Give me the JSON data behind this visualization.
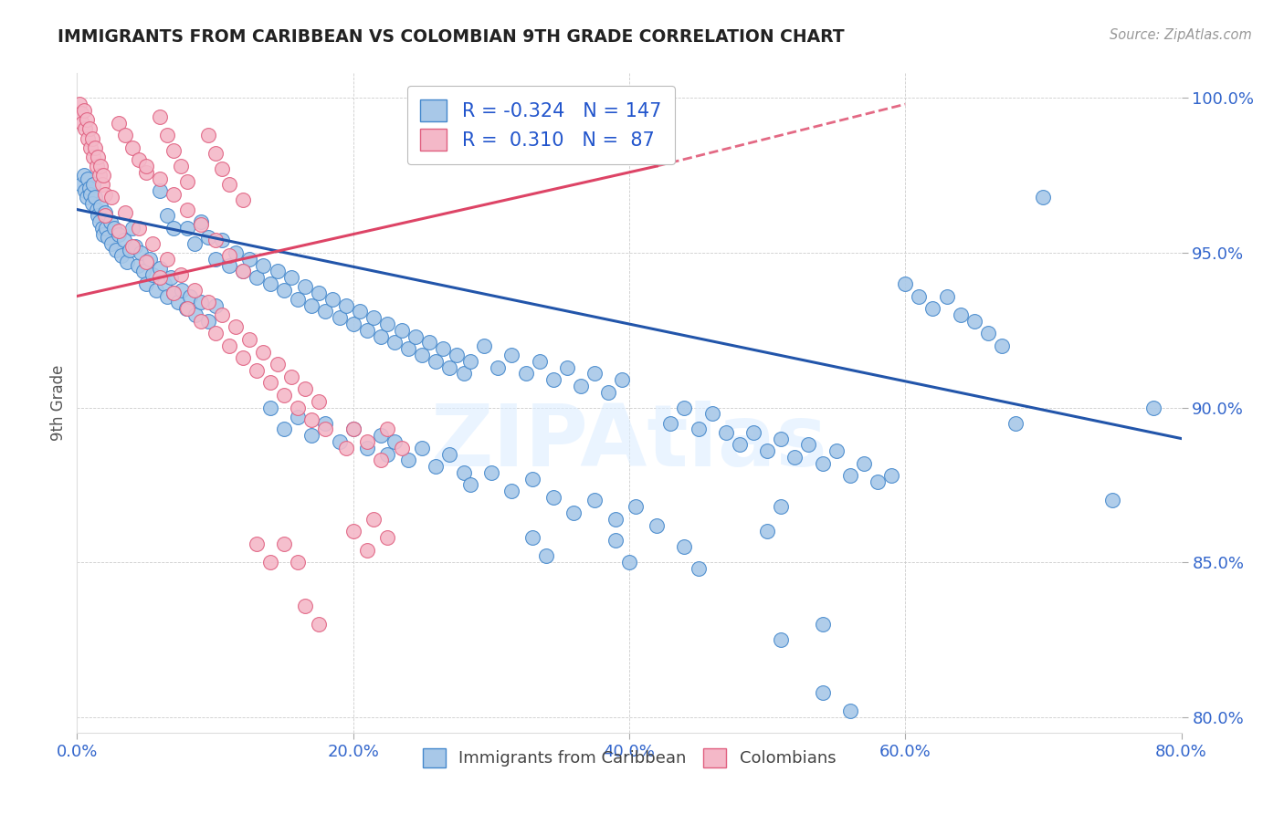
{
  "title": "IMMIGRANTS FROM CARIBBEAN VS COLOMBIAN 9TH GRADE CORRELATION CHART",
  "source": "Source: ZipAtlas.com",
  "xlabel_ticks": [
    "0.0%",
    "20.0%",
    "40.0%",
    "60.0%",
    "80.0%"
  ],
  "ylabel_ticks": [
    "80.0%",
    "85.0%",
    "90.0%",
    "95.0%",
    "100.0%"
  ],
  "xlim": [
    0.0,
    0.8
  ],
  "ylim": [
    0.795,
    1.008
  ],
  "ylabel": "9th Grade",
  "legend_label1": "Immigrants from Caribbean",
  "legend_label2": "Colombians",
  "blue_color": "#a8c8e8",
  "pink_color": "#f4b8c8",
  "blue_edge_color": "#4488cc",
  "pink_edge_color": "#e06080",
  "blue_line_color": "#2255aa",
  "pink_line_color": "#dd4466",
  "R_blue": "-0.324",
  "N_blue": "147",
  "R_pink": "0.310",
  "N_pink": "87",
  "watermark": "ZIPAtlas",
  "blue_trend": [
    0.0,
    0.8,
    0.964,
    0.89
  ],
  "pink_trend_solid": [
    0.0,
    0.42,
    0.936,
    0.978
  ],
  "pink_trend_dash": [
    0.42,
    0.6,
    0.978,
    0.998
  ],
  "blue_points": [
    [
      0.003,
      0.972
    ],
    [
      0.005,
      0.975
    ],
    [
      0.006,
      0.97
    ],
    [
      0.007,
      0.968
    ],
    [
      0.008,
      0.974
    ],
    [
      0.009,
      0.971
    ],
    [
      0.01,
      0.969
    ],
    [
      0.011,
      0.966
    ],
    [
      0.012,
      0.972
    ],
    [
      0.013,
      0.968
    ],
    [
      0.014,
      0.964
    ],
    [
      0.015,
      0.962
    ],
    [
      0.016,
      0.96
    ],
    [
      0.017,
      0.965
    ],
    [
      0.018,
      0.958
    ],
    [
      0.019,
      0.956
    ],
    [
      0.02,
      0.963
    ],
    [
      0.021,
      0.958
    ],
    [
      0.022,
      0.955
    ],
    [
      0.024,
      0.96
    ],
    [
      0.025,
      0.953
    ],
    [
      0.027,
      0.958
    ],
    [
      0.028,
      0.951
    ],
    [
      0.03,
      0.956
    ],
    [
      0.032,
      0.949
    ],
    [
      0.034,
      0.954
    ],
    [
      0.036,
      0.947
    ],
    [
      0.038,
      0.951
    ],
    [
      0.04,
      0.958
    ],
    [
      0.042,
      0.952
    ],
    [
      0.044,
      0.946
    ],
    [
      0.046,
      0.95
    ],
    [
      0.048,
      0.944
    ],
    [
      0.05,
      0.94
    ],
    [
      0.053,
      0.948
    ],
    [
      0.055,
      0.943
    ],
    [
      0.057,
      0.938
    ],
    [
      0.06,
      0.945
    ],
    [
      0.063,
      0.94
    ],
    [
      0.065,
      0.936
    ],
    [
      0.068,
      0.942
    ],
    [
      0.07,
      0.937
    ],
    [
      0.073,
      0.934
    ],
    [
      0.076,
      0.938
    ],
    [
      0.079,
      0.932
    ],
    [
      0.082,
      0.936
    ],
    [
      0.086,
      0.93
    ],
    [
      0.09,
      0.934
    ],
    [
      0.095,
      0.928
    ],
    [
      0.1,
      0.933
    ],
    [
      0.06,
      0.97
    ],
    [
      0.065,
      0.962
    ],
    [
      0.07,
      0.958
    ],
    [
      0.08,
      0.958
    ],
    [
      0.085,
      0.953
    ],
    [
      0.09,
      0.96
    ],
    [
      0.095,
      0.955
    ],
    [
      0.1,
      0.948
    ],
    [
      0.105,
      0.954
    ],
    [
      0.11,
      0.946
    ],
    [
      0.115,
      0.95
    ],
    [
      0.12,
      0.944
    ],
    [
      0.125,
      0.948
    ],
    [
      0.13,
      0.942
    ],
    [
      0.135,
      0.946
    ],
    [
      0.14,
      0.94
    ],
    [
      0.145,
      0.944
    ],
    [
      0.15,
      0.938
    ],
    [
      0.155,
      0.942
    ],
    [
      0.16,
      0.935
    ],
    [
      0.165,
      0.939
    ],
    [
      0.17,
      0.933
    ],
    [
      0.175,
      0.937
    ],
    [
      0.18,
      0.931
    ],
    [
      0.185,
      0.935
    ],
    [
      0.19,
      0.929
    ],
    [
      0.195,
      0.933
    ],
    [
      0.2,
      0.927
    ],
    [
      0.205,
      0.931
    ],
    [
      0.21,
      0.925
    ],
    [
      0.215,
      0.929
    ],
    [
      0.22,
      0.923
    ],
    [
      0.225,
      0.927
    ],
    [
      0.23,
      0.921
    ],
    [
      0.235,
      0.925
    ],
    [
      0.24,
      0.919
    ],
    [
      0.245,
      0.923
    ],
    [
      0.25,
      0.917
    ],
    [
      0.255,
      0.921
    ],
    [
      0.26,
      0.915
    ],
    [
      0.265,
      0.919
    ],
    [
      0.27,
      0.913
    ],
    [
      0.275,
      0.917
    ],
    [
      0.28,
      0.911
    ],
    [
      0.285,
      0.915
    ],
    [
      0.295,
      0.92
    ],
    [
      0.305,
      0.913
    ],
    [
      0.315,
      0.917
    ],
    [
      0.325,
      0.911
    ],
    [
      0.335,
      0.915
    ],
    [
      0.345,
      0.909
    ],
    [
      0.355,
      0.913
    ],
    [
      0.365,
      0.907
    ],
    [
      0.375,
      0.911
    ],
    [
      0.385,
      0.905
    ],
    [
      0.395,
      0.909
    ],
    [
      0.14,
      0.9
    ],
    [
      0.15,
      0.893
    ],
    [
      0.16,
      0.897
    ],
    [
      0.17,
      0.891
    ],
    [
      0.18,
      0.895
    ],
    [
      0.19,
      0.889
    ],
    [
      0.2,
      0.893
    ],
    [
      0.21,
      0.887
    ],
    [
      0.22,
      0.891
    ],
    [
      0.225,
      0.885
    ],
    [
      0.23,
      0.889
    ],
    [
      0.24,
      0.883
    ],
    [
      0.25,
      0.887
    ],
    [
      0.26,
      0.881
    ],
    [
      0.27,
      0.885
    ],
    [
      0.28,
      0.879
    ],
    [
      0.285,
      0.875
    ],
    [
      0.3,
      0.879
    ],
    [
      0.315,
      0.873
    ],
    [
      0.33,
      0.877
    ],
    [
      0.345,
      0.871
    ],
    [
      0.36,
      0.866
    ],
    [
      0.375,
      0.87
    ],
    [
      0.39,
      0.864
    ],
    [
      0.405,
      0.868
    ],
    [
      0.42,
      0.862
    ],
    [
      0.43,
      0.895
    ],
    [
      0.44,
      0.9
    ],
    [
      0.45,
      0.893
    ],
    [
      0.46,
      0.898
    ],
    [
      0.47,
      0.892
    ],
    [
      0.48,
      0.888
    ],
    [
      0.49,
      0.892
    ],
    [
      0.5,
      0.886
    ],
    [
      0.51,
      0.89
    ],
    [
      0.52,
      0.884
    ],
    [
      0.53,
      0.888
    ],
    [
      0.54,
      0.882
    ],
    [
      0.55,
      0.886
    ],
    [
      0.56,
      0.878
    ],
    [
      0.57,
      0.882
    ],
    [
      0.58,
      0.876
    ],
    [
      0.59,
      0.878
    ],
    [
      0.6,
      0.94
    ],
    [
      0.61,
      0.936
    ],
    [
      0.62,
      0.932
    ],
    [
      0.63,
      0.936
    ],
    [
      0.64,
      0.93
    ],
    [
      0.65,
      0.928
    ],
    [
      0.66,
      0.924
    ],
    [
      0.67,
      0.92
    ],
    [
      0.39,
      0.857
    ],
    [
      0.4,
      0.85
    ],
    [
      0.44,
      0.855
    ],
    [
      0.45,
      0.848
    ],
    [
      0.5,
      0.86
    ],
    [
      0.51,
      0.868
    ],
    [
      0.33,
      0.858
    ],
    [
      0.34,
      0.852
    ],
    [
      0.68,
      0.895
    ],
    [
      0.7,
      0.968
    ],
    [
      0.75,
      0.87
    ],
    [
      0.78,
      0.9
    ],
    [
      0.51,
      0.825
    ],
    [
      0.54,
      0.83
    ],
    [
      0.54,
      0.808
    ],
    [
      0.56,
      0.802
    ]
  ],
  "pink_points": [
    [
      0.002,
      0.998
    ],
    [
      0.003,
      0.995
    ],
    [
      0.004,
      0.992
    ],
    [
      0.005,
      0.996
    ],
    [
      0.006,
      0.99
    ],
    [
      0.007,
      0.993
    ],
    [
      0.008,
      0.987
    ],
    [
      0.009,
      0.99
    ],
    [
      0.01,
      0.984
    ],
    [
      0.011,
      0.987
    ],
    [
      0.012,
      0.981
    ],
    [
      0.013,
      0.984
    ],
    [
      0.014,
      0.978
    ],
    [
      0.015,
      0.981
    ],
    [
      0.016,
      0.975
    ],
    [
      0.017,
      0.978
    ],
    [
      0.018,
      0.972
    ],
    [
      0.019,
      0.975
    ],
    [
      0.02,
      0.969
    ],
    [
      0.03,
      0.992
    ],
    [
      0.035,
      0.988
    ],
    [
      0.04,
      0.984
    ],
    [
      0.045,
      0.98
    ],
    [
      0.05,
      0.976
    ],
    [
      0.06,
      0.994
    ],
    [
      0.065,
      0.988
    ],
    [
      0.07,
      0.983
    ],
    [
      0.075,
      0.978
    ],
    [
      0.08,
      0.973
    ],
    [
      0.095,
      0.988
    ],
    [
      0.1,
      0.982
    ],
    [
      0.105,
      0.977
    ],
    [
      0.11,
      0.972
    ],
    [
      0.12,
      0.967
    ],
    [
      0.02,
      0.962
    ],
    [
      0.025,
      0.968
    ],
    [
      0.03,
      0.957
    ],
    [
      0.035,
      0.963
    ],
    [
      0.04,
      0.952
    ],
    [
      0.045,
      0.958
    ],
    [
      0.05,
      0.947
    ],
    [
      0.055,
      0.953
    ],
    [
      0.06,
      0.942
    ],
    [
      0.065,
      0.948
    ],
    [
      0.07,
      0.937
    ],
    [
      0.075,
      0.943
    ],
    [
      0.08,
      0.932
    ],
    [
      0.085,
      0.938
    ],
    [
      0.09,
      0.928
    ],
    [
      0.095,
      0.934
    ],
    [
      0.1,
      0.924
    ],
    [
      0.105,
      0.93
    ],
    [
      0.11,
      0.92
    ],
    [
      0.115,
      0.926
    ],
    [
      0.12,
      0.916
    ],
    [
      0.125,
      0.922
    ],
    [
      0.13,
      0.912
    ],
    [
      0.135,
      0.918
    ],
    [
      0.14,
      0.908
    ],
    [
      0.145,
      0.914
    ],
    [
      0.15,
      0.904
    ],
    [
      0.155,
      0.91
    ],
    [
      0.16,
      0.9
    ],
    [
      0.165,
      0.906
    ],
    [
      0.17,
      0.896
    ],
    [
      0.175,
      0.902
    ],
    [
      0.18,
      0.893
    ],
    [
      0.05,
      0.978
    ],
    [
      0.06,
      0.974
    ],
    [
      0.07,
      0.969
    ],
    [
      0.08,
      0.964
    ],
    [
      0.09,
      0.959
    ],
    [
      0.1,
      0.954
    ],
    [
      0.11,
      0.949
    ],
    [
      0.12,
      0.944
    ],
    [
      0.195,
      0.887
    ],
    [
      0.2,
      0.893
    ],
    [
      0.21,
      0.889
    ],
    [
      0.22,
      0.883
    ],
    [
      0.225,
      0.893
    ],
    [
      0.235,
      0.887
    ],
    [
      0.2,
      0.86
    ],
    [
      0.21,
      0.854
    ],
    [
      0.215,
      0.864
    ],
    [
      0.225,
      0.858
    ],
    [
      0.13,
      0.856
    ],
    [
      0.14,
      0.85
    ],
    [
      0.15,
      0.856
    ],
    [
      0.16,
      0.85
    ],
    [
      0.165,
      0.836
    ],
    [
      0.175,
      0.83
    ]
  ]
}
